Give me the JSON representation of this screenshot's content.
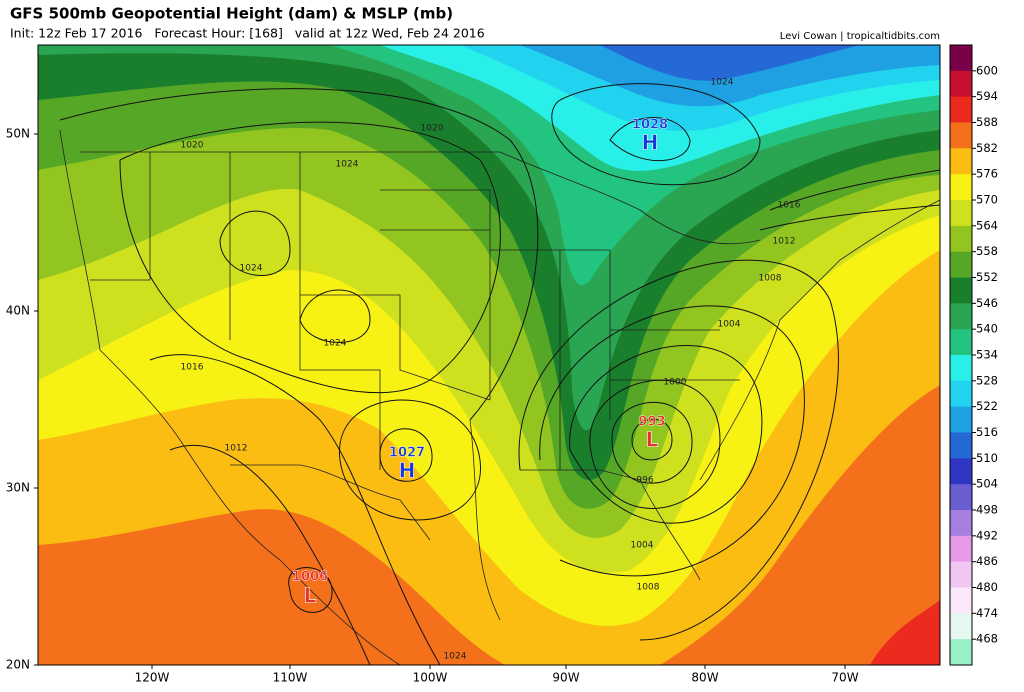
{
  "header": {
    "title": "GFS 500mb Geopotential Height (dam) & MSLP (mb)",
    "subtitle": "Init: 12z Feb 17 2016   Forecast Hour: [168]   valid at 12z Wed, Feb 24 2016",
    "credit": "Levi Cowan | tropicaltidbits.com"
  },
  "axes": {
    "lat_labels": [
      "50N",
      "40N",
      "30N",
      "20N"
    ],
    "lon_labels": [
      "120W",
      "110W",
      "100W",
      "90W",
      "80W",
      "70W"
    ]
  },
  "colorbar": {
    "labels": [
      "600",
      "594",
      "588",
      "582",
      "576",
      "570",
      "564",
      "558",
      "552",
      "546",
      "540",
      "534",
      "528",
      "522",
      "516",
      "510",
      "504",
      "498",
      "492",
      "486",
      "480",
      "474",
      "468"
    ],
    "colors": [
      "#7a0047",
      "#c8102e",
      "#ec2a1d",
      "#f4701a",
      "#fbbd12",
      "#f8f214",
      "#cfe11e",
      "#93c520",
      "#56a725",
      "#1a7f2c",
      "#2aa552",
      "#23c47f",
      "#28f0e8",
      "#22d3f0",
      "#1ea0e2",
      "#2569d6",
      "#3036c4",
      "#6a5ed0",
      "#a67fe0",
      "#e79ae8",
      "#f0c7f0",
      "#fbe8fb",
      "#e6f8ef",
      "#9af0c6"
    ]
  },
  "centers": [
    {
      "pressure": "1028",
      "letter": "H"
    },
    {
      "pressure": "1027",
      "letter": "H"
    },
    {
      "pressure": "993",
      "letter": "L"
    },
    {
      "pressure": "1006",
      "letter": "L"
    }
  ],
  "isobar_labels": [
    "1020",
    "1020",
    "1024",
    "1024",
    "1024",
    "1024",
    "1016",
    "1016",
    "1012",
    "1012",
    "1008",
    "1008",
    "1004",
    "1004",
    "1000",
    "996",
    "1024"
  ]
}
